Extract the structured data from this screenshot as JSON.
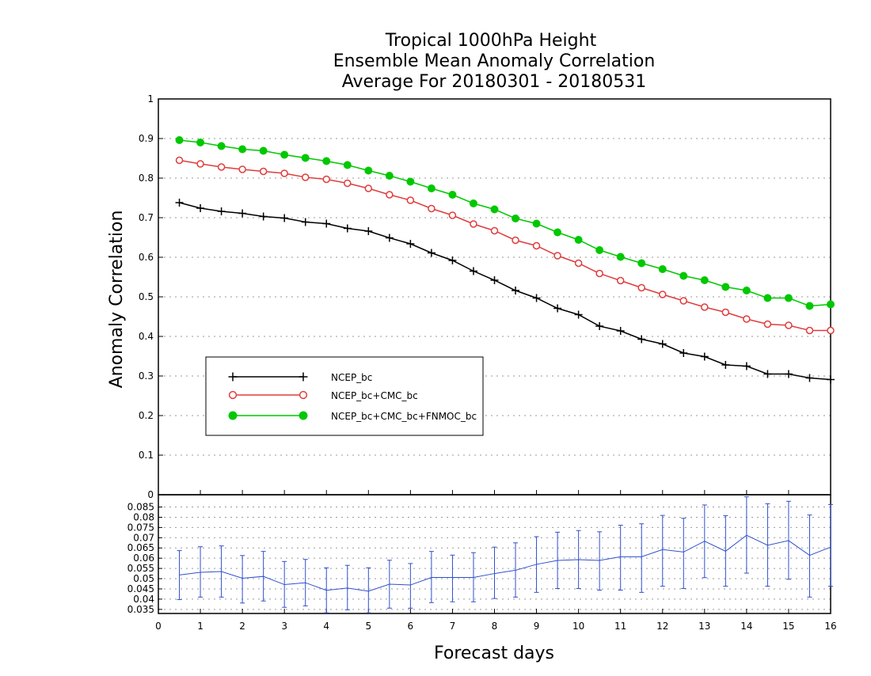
{
  "chart_data": [
    {
      "type": "line",
      "title": [
        "Tropical 1000hPa Height",
        "Ensemble Mean Anomaly Correlation",
        "Average For 20180301 - 20180531"
      ],
      "xlabel": "Forecast days",
      "ylabel": "Anomaly Correlation",
      "xlim": [
        0,
        16
      ],
      "ylim": [
        0,
        1
      ],
      "xticks": [
        "0",
        "1",
        "2",
        "3",
        "4",
        "5",
        "6",
        "7",
        "8",
        "9",
        "10",
        "11",
        "12",
        "13",
        "14",
        "15",
        "16"
      ],
      "yticks": [
        "0",
        "0.1",
        "0.2",
        "0.3",
        "0.4",
        "0.5",
        "0.6",
        "0.7",
        "0.8",
        "0.9",
        "1"
      ],
      "grid": "dotted horizontal",
      "legend_position": "lower-left",
      "x": [
        0.5,
        1,
        1.5,
        2,
        2.5,
        3,
        3.5,
        4,
        4.5,
        5,
        5.5,
        6,
        6.5,
        7,
        7.5,
        8,
        8.5,
        9,
        9.5,
        10,
        10.5,
        11,
        11.5,
        12,
        12.5,
        13,
        13.5,
        14,
        14.5,
        15,
        15.5,
        16
      ],
      "series": [
        {
          "name": "NCEP_bc",
          "color": "#000000",
          "marker": "plus",
          "values": [
            0.738,
            0.724,
            0.716,
            0.711,
            0.703,
            0.699,
            0.689,
            0.685,
            0.673,
            0.666,
            0.649,
            0.634,
            0.611,
            0.592,
            0.565,
            0.542,
            0.516,
            0.497,
            0.471,
            0.455,
            0.426,
            0.414,
            0.393,
            0.381,
            0.358,
            0.349,
            0.328,
            0.325,
            0.305,
            0.305,
            0.295,
            0.291
          ]
        },
        {
          "name": "NCEP_bc+CMC_bc",
          "color": "#e03c3c",
          "marker": "open-circle",
          "values": [
            0.845,
            0.836,
            0.828,
            0.822,
            0.817,
            0.812,
            0.802,
            0.797,
            0.787,
            0.774,
            0.758,
            0.744,
            0.723,
            0.706,
            0.684,
            0.667,
            0.643,
            0.629,
            0.604,
            0.585,
            0.559,
            0.541,
            0.523,
            0.506,
            0.49,
            0.474,
            0.461,
            0.444,
            0.431,
            0.428,
            0.415,
            0.415
          ]
        },
        {
          "name": "NCEP_bc+CMC_bc+FNMOC_bc",
          "color": "#00c800",
          "marker": "filled-circle",
          "values": [
            0.896,
            0.89,
            0.881,
            0.873,
            0.869,
            0.859,
            0.851,
            0.843,
            0.833,
            0.819,
            0.806,
            0.791,
            0.774,
            0.758,
            0.736,
            0.721,
            0.698,
            0.685,
            0.663,
            0.644,
            0.618,
            0.601,
            0.585,
            0.57,
            0.553,
            0.542,
            0.525,
            0.516,
            0.497,
            0.497,
            0.477,
            0.481
          ]
        }
      ]
    },
    {
      "type": "line",
      "subtype": "errorbar",
      "xlim": [
        0,
        16
      ],
      "ylim": [
        0.033,
        0.091
      ],
      "yticks": [
        "0.035",
        "0.04",
        "0.045",
        "0.05",
        "0.055",
        "0.06",
        "0.065",
        "0.07",
        "0.075",
        "0.08",
        "0.085"
      ],
      "grid": "dotted horizontal",
      "color": "#2f4fd0",
      "x": [
        0.5,
        1,
        1.5,
        2,
        2.5,
        3,
        3.5,
        4,
        4.5,
        5,
        5.5,
        6,
        6.5,
        7,
        7.5,
        8,
        8.5,
        9,
        9.5,
        10,
        10.5,
        11,
        11.5,
        12,
        12.5,
        13,
        13.5,
        14,
        14.5,
        15,
        15.5,
        16
      ],
      "values": [
        0.0518,
        0.0531,
        0.0535,
        0.0502,
        0.0511,
        0.0471,
        0.048,
        0.0443,
        0.0454,
        0.0439,
        0.0473,
        0.0469,
        0.0506,
        0.0506,
        0.0506,
        0.0525,
        0.0541,
        0.057,
        0.0589,
        0.0593,
        0.0589,
        0.0607,
        0.0607,
        0.0642,
        0.063,
        0.0683,
        0.0634,
        0.0712,
        0.0663,
        0.0686,
        0.0614,
        0.0654
      ],
      "lower": [
        0.0398,
        0.041,
        0.041,
        0.0381,
        0.0391,
        0.036,
        0.0367,
        0.0333,
        0.0348,
        0.0333,
        0.0356,
        0.0356,
        0.0383,
        0.0387,
        0.0387,
        0.0403,
        0.041,
        0.0433,
        0.0452,
        0.0452,
        0.0444,
        0.0444,
        0.0433,
        0.0463,
        0.0452,
        0.0505,
        0.0463,
        0.0527,
        0.0463,
        0.0497,
        0.041,
        0.0463
      ],
      "upper": [
        0.0637,
        0.0656,
        0.066,
        0.0613,
        0.0633,
        0.0584,
        0.0594,
        0.0553,
        0.0565,
        0.0553,
        0.059,
        0.0574,
        0.0633,
        0.0615,
        0.0627,
        0.0654,
        0.0675,
        0.0705,
        0.0727,
        0.0735,
        0.0729,
        0.0761,
        0.0768,
        0.0809,
        0.0795,
        0.086,
        0.0808,
        0.09,
        0.0866,
        0.0878,
        0.0811,
        0.0862
      ]
    }
  ]
}
